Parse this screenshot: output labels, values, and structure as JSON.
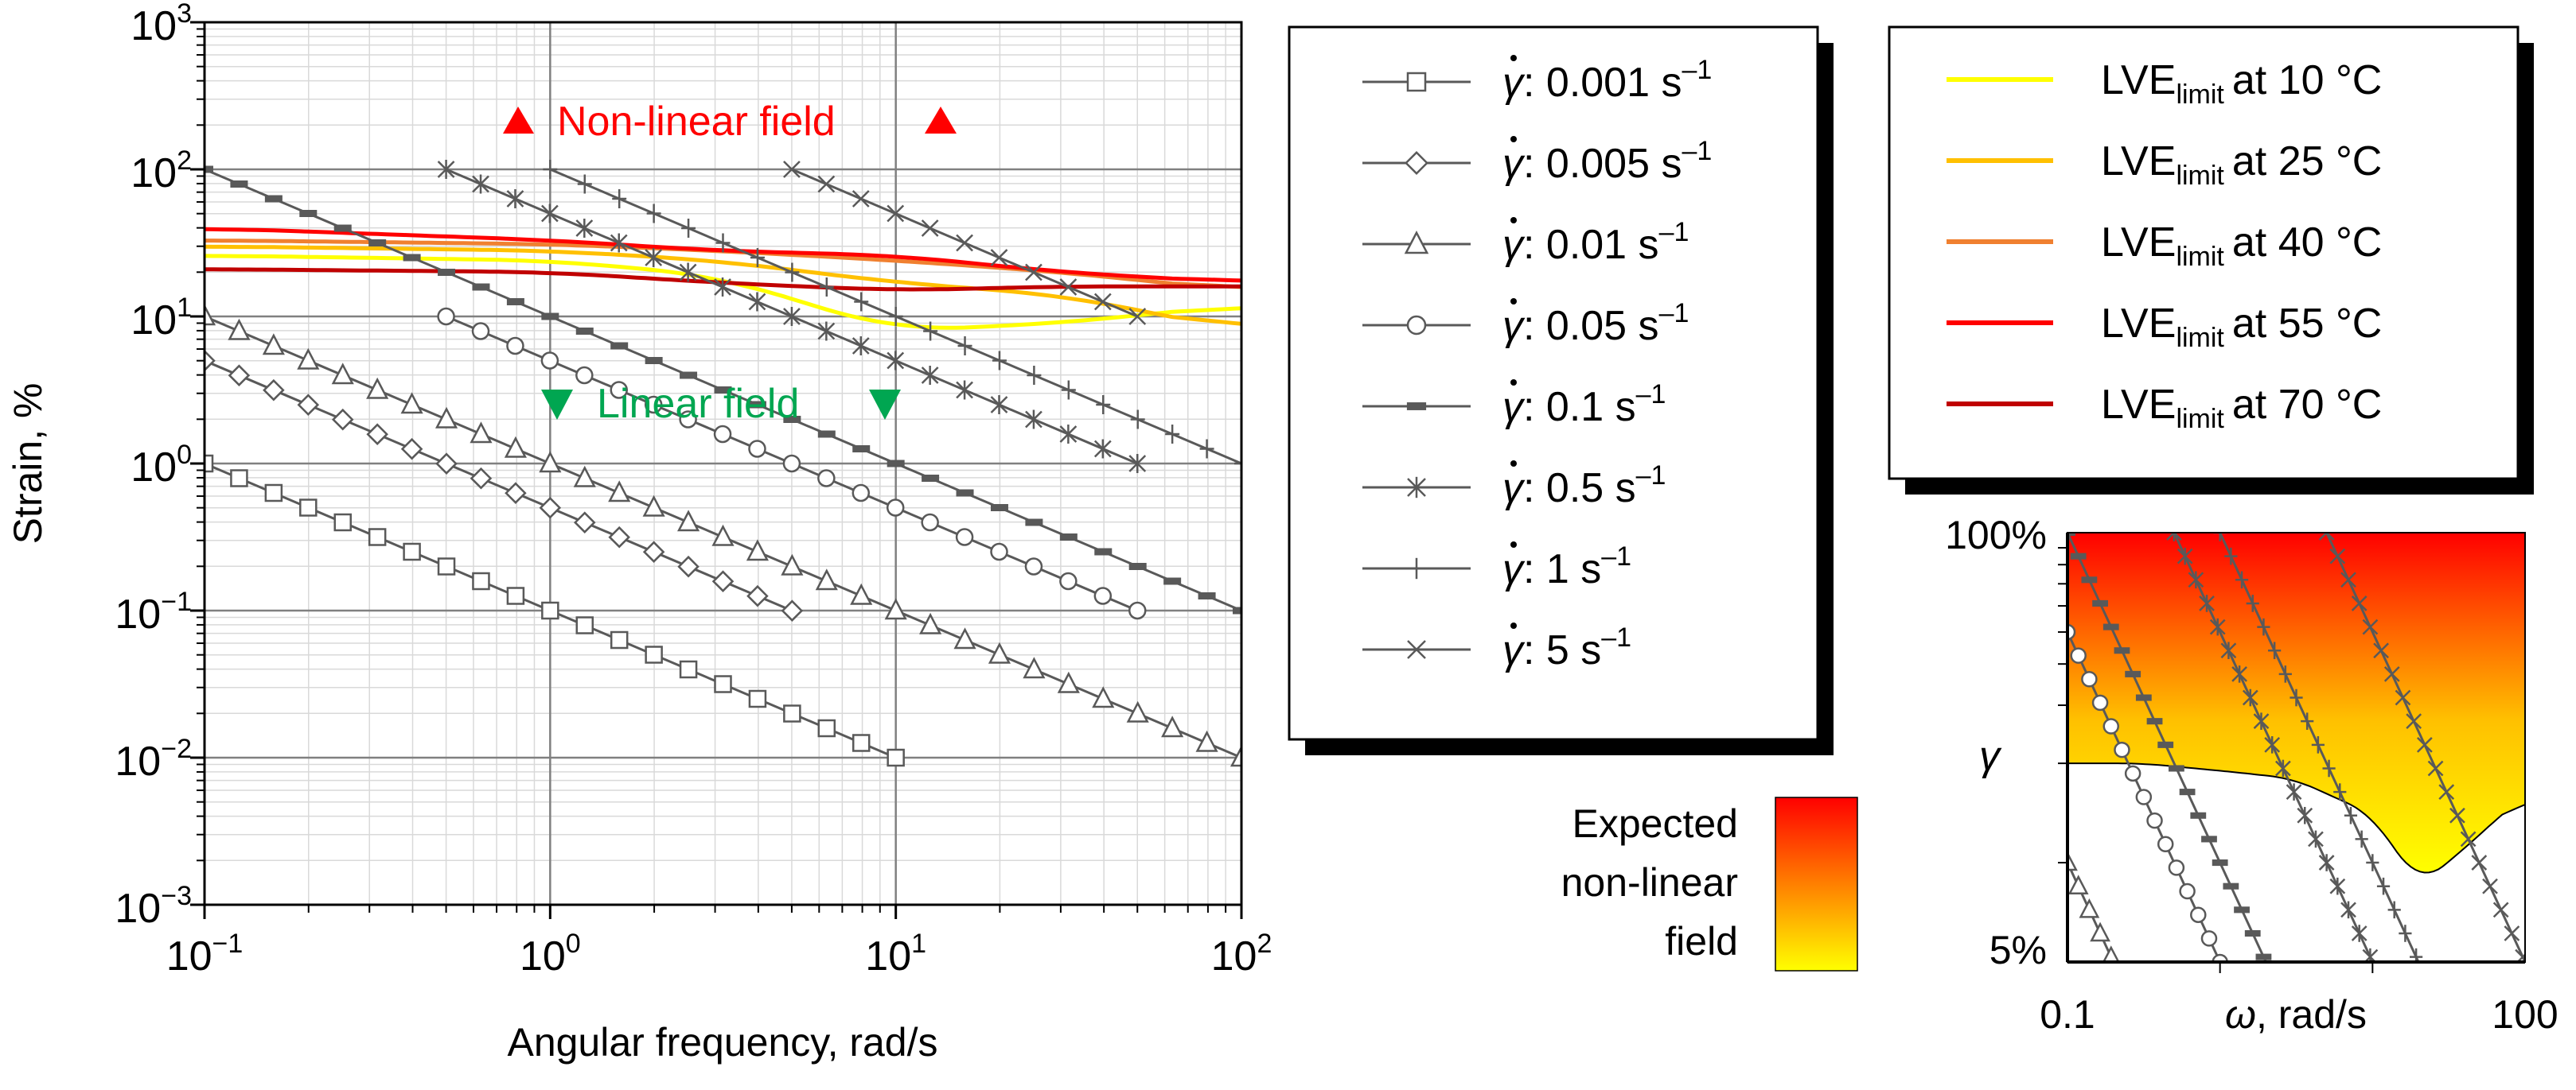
{
  "chart_data": [
    {
      "type": "line",
      "scale": "log-log",
      "xlabel": "Angular frequency, rad/s",
      "ylabel": "Strain, %",
      "xlim": [
        0.1,
        100
      ],
      "ylim": [
        0.001,
        1000
      ],
      "grid": true,
      "x_ticks": [
        {
          "base": "10",
          "exp": "−1"
        },
        {
          "base": "10",
          "exp": "0"
        },
        {
          "base": "10",
          "exp": "1"
        },
        {
          "base": "10",
          "exp": "2"
        }
      ],
      "y_ticks": [
        {
          "base": "10",
          "exp": "−3"
        },
        {
          "base": "10",
          "exp": "−2"
        },
        {
          "base": "10",
          "exp": "−1"
        },
        {
          "base": "10",
          "exp": "0"
        },
        {
          "base": "10",
          "exp": "1"
        },
        {
          "base": "10",
          "exp": "2"
        },
        {
          "base": "10",
          "exp": "3"
        }
      ],
      "annotations": {
        "nonlinear": "Non-linear field",
        "linear": "Linear field",
        "nonlinear_color": "#ff0000",
        "linear_color": "#00a651"
      },
      "series": [
        {
          "name": "γ̇: 0.001 s⁻¹",
          "rate": 0.001,
          "marker": "square",
          "x_range": [
            0.1,
            10
          ]
        },
        {
          "name": "γ̇: 0.005 s⁻¹",
          "rate": 0.005,
          "marker": "diamond",
          "x_range": [
            0.1,
            5
          ]
        },
        {
          "name": "γ̇: 0.01 s⁻¹",
          "rate": 0.01,
          "marker": "triangle",
          "x_range": [
            0.1,
            100
          ]
        },
        {
          "name": "γ̇: 0.05 s⁻¹",
          "rate": 0.05,
          "marker": "circle",
          "x_range": [
            0.5,
            50
          ]
        },
        {
          "name": "γ̇: 0.1 s⁻¹",
          "rate": 0.1,
          "marker": "dash",
          "x_range": [
            0.1,
            100
          ]
        },
        {
          "name": "γ̇: 0.5 s⁻¹",
          "rate": 0.5,
          "marker": "asterisk",
          "x_range": [
            0.5,
            50
          ]
        },
        {
          "name": "γ̇: 1 s⁻¹",
          "rate": 1,
          "marker": "plus",
          "x_range": [
            1,
            100
          ]
        },
        {
          "name": "γ̇: 5 s⁻¹",
          "rate": 5,
          "marker": "x",
          "x_range": [
            5,
            50
          ]
        }
      ],
      "lve_limits": [
        {
          "name": "LVE limit at 10 °C",
          "color": "#ffff00",
          "x": [
            0.1,
            1,
            3,
            10,
            30,
            100
          ],
          "y": [
            26,
            24,
            19,
            8,
            9,
            12
          ]
        },
        {
          "name": "LVE limit at 25 °C",
          "color": "#ffc000",
          "x": [
            0.1,
            1,
            3,
            10,
            30,
            100
          ],
          "y": [
            30,
            28,
            24,
            17,
            14,
            8
          ]
        },
        {
          "name": "LVE limit at 40 °C",
          "color": "#f08030",
          "x": [
            0.1,
            1,
            3,
            10,
            30,
            100
          ],
          "y": [
            33,
            31,
            28,
            24,
            20,
            15
          ]
        },
        {
          "name": "LVE limit at 55 °C",
          "color": "#ff0000",
          "x": [
            0.1,
            1,
            3,
            10,
            30,
            100
          ],
          "y": [
            40,
            33,
            28,
            26,
            20,
            17
          ]
        },
        {
          "name": "LVE limit at 70 °C",
          "color": "#c00000",
          "x": [
            0.1,
            1,
            3,
            10,
            30,
            100
          ],
          "y": [
            21,
            20,
            17,
            15,
            16,
            16
          ]
        }
      ]
    },
    {
      "type": "line",
      "scale": "log-log",
      "xlabel": "ω, rad/s",
      "ylabel": "γ",
      "xlim": [
        0.1,
        100
      ],
      "ylim": [
        5,
        100
      ],
      "x_tick_labels": [
        "0.1",
        "100"
      ],
      "y_tick_labels": [
        "5%",
        "100%"
      ],
      "fill_boundary": {
        "x": [
          0.1,
          0.3,
          1,
          3,
          10,
          20,
          40,
          70,
          100
        ],
        "y": [
          20,
          20,
          19,
          18,
          14,
          8.5,
          11,
          14,
          16
        ]
      },
      "series_rates": [
        0.01,
        0.05,
        0.1,
        0.5,
        1,
        5
      ]
    }
  ],
  "legend_rates": {
    "entries": [
      {
        "value": "0.001",
        "unit": "s",
        "exp": "–1",
        "marker": "square"
      },
      {
        "value": "0.005",
        "unit": "s",
        "exp": "–1",
        "marker": "diamond"
      },
      {
        "value": "0.01",
        "unit": "s",
        "exp": "–1",
        "marker": "triangle"
      },
      {
        "value": "0.05",
        "unit": "s",
        "exp": "–1",
        "marker": "circle"
      },
      {
        "value": "0.1",
        "unit": "s",
        "exp": "–1",
        "marker": "dash"
      },
      {
        "value": "0.5",
        "unit": "s",
        "exp": "–1",
        "marker": "asterisk"
      },
      {
        "value": "1",
        "unit": "s",
        "exp": "–1",
        "marker": "plus"
      },
      {
        "value": "5",
        "unit": "s",
        "exp": "–1",
        "marker": "x"
      }
    ]
  },
  "legend_lve": {
    "entries": [
      {
        "main": "LVE",
        "sub": "limit",
        "temp": "at 10 °C",
        "color": "#ffff00"
      },
      {
        "main": "LVE",
        "sub": "limit",
        "temp": "at 25 °C",
        "color": "#ffc000"
      },
      {
        "main": "LVE",
        "sub": "limit",
        "temp": "at 40 °C",
        "color": "#f08030"
      },
      {
        "main": "LVE",
        "sub": "limit",
        "temp": "at 55 °C",
        "color": "#ff0000"
      },
      {
        "main": "LVE",
        "sub": "limit",
        "temp": "at 70 °C",
        "color": "#c00000"
      }
    ]
  },
  "colorbar": {
    "label_lines": [
      "Expected",
      "non-linear",
      "field"
    ],
    "color_top": "#ff0000",
    "color_bottom": "#ffff00"
  },
  "colors": {
    "series_line": "#595959",
    "grid_major": "#808080",
    "grid_minor": "#d9d9d9"
  }
}
